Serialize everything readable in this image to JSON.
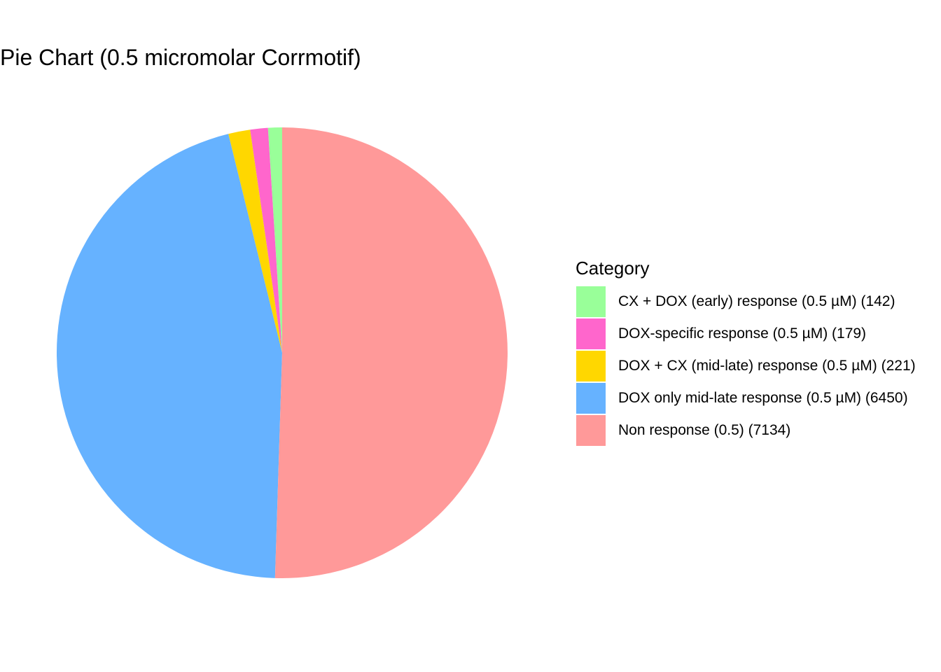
{
  "chart_data": {
    "type": "pie",
    "title": "Pie Chart (0.5 micromolar Corrmotif)",
    "legend_title": "Category",
    "legend_position": "right",
    "categories": [
      "CX + DOX (early) response (0.5 µM)",
      "DOX-specific response (0.5 µM)",
      "DOX + CX (mid-late) response (0.5 µM)",
      "DOX only mid-late response (0.5 µM)",
      "Non response (0.5)"
    ],
    "values": [
      142,
      179,
      221,
      6450,
      7134
    ],
    "legend_labels": [
      "CX + DOX (early) response (0.5 µM) (142)",
      "DOX-specific response (0.5 µM) (179)",
      "DOX + CX (mid-late) response (0.5 µM) (221)",
      "DOX only mid-late response (0.5 µM) (6450)",
      "Non response (0.5) (7134)"
    ],
    "colors": [
      "#99FF99",
      "#FF66CC",
      "#FFD700",
      "#66B2FF",
      "#FF9999"
    ]
  }
}
